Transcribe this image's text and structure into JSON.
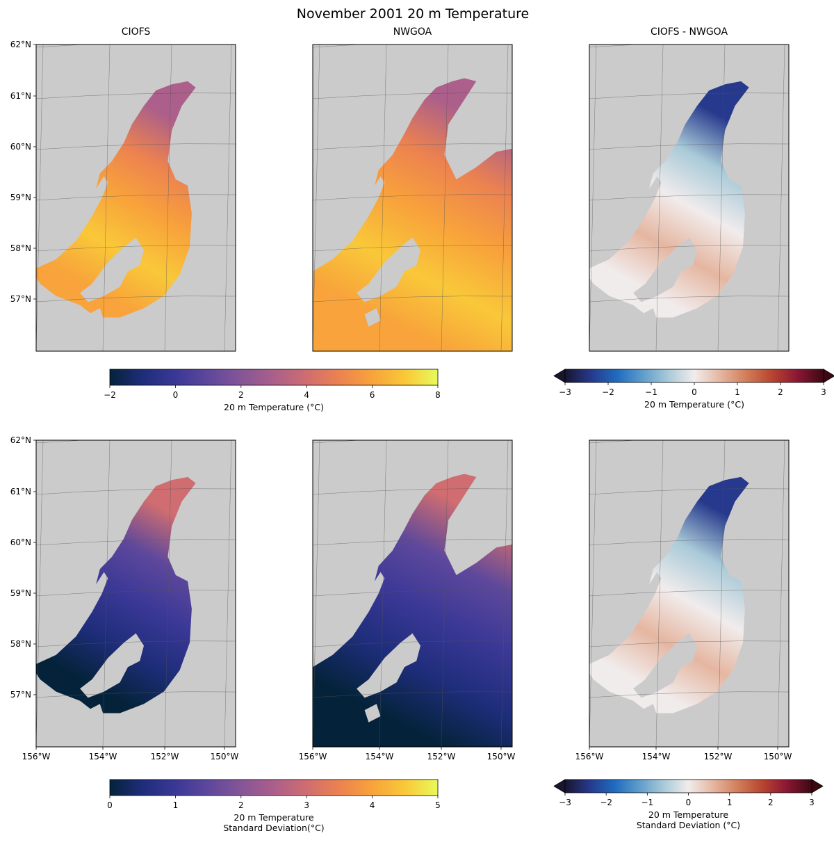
{
  "figure": {
    "title": "November 2001 20 m Temperature",
    "colors": {
      "land": "#cbcbcb",
      "ocean": "#ffffff",
      "frame": "#000000",
      "graticule": "#555555"
    }
  },
  "chart_data": [
    {
      "type": "heatmap",
      "panel": "top-left",
      "title": "CIOFS",
      "variable": "20 m Temperature",
      "lat_ticks": [
        "62°N",
        "61°N",
        "60°N",
        "59°N",
        "58°N",
        "57°N"
      ],
      "lon_ticks": [],
      "colormap": "thermal",
      "vlim": [
        -2,
        8
      ]
    },
    {
      "type": "heatmap",
      "panel": "top-middle",
      "title": "NWGOA",
      "variable": "20 m Temperature",
      "lat_ticks": [],
      "lon_ticks": [],
      "colormap": "thermal",
      "vlim": [
        -2,
        8
      ]
    },
    {
      "type": "heatmap",
      "panel": "top-right",
      "title": "CIOFS - NWGOA",
      "variable": "20 m Temperature",
      "lat_ticks": [],
      "lon_ticks": [],
      "colormap": "balance",
      "vlim": [
        -3,
        3
      ]
    },
    {
      "type": "heatmap",
      "panel": "bottom-left",
      "title": "",
      "variable": "20 m Temperature Standard Deviation",
      "lat_ticks": [
        "62°N",
        "61°N",
        "60°N",
        "59°N",
        "58°N",
        "57°N"
      ],
      "lon_ticks": [
        "156°W",
        "154°W",
        "152°W",
        "150°W"
      ],
      "colormap": "thermal",
      "vlim": [
        0,
        5
      ]
    },
    {
      "type": "heatmap",
      "panel": "bottom-middle",
      "title": "",
      "variable": "20 m Temperature Standard Deviation",
      "lat_ticks": [],
      "lon_ticks": [
        "156°W",
        "154°W",
        "152°W",
        "150°W"
      ],
      "colormap": "thermal",
      "vlim": [
        0,
        5
      ]
    },
    {
      "type": "heatmap",
      "panel": "bottom-right",
      "title": "",
      "variable": "20 m Temperature Standard Deviation",
      "lat_ticks": [],
      "lon_ticks": [
        "156°W",
        "154°W",
        "152°W",
        "150°W"
      ],
      "colormap": "balance",
      "vlim": [
        -3,
        3
      ]
    }
  ],
  "colorbars": [
    {
      "id": "cb-top-left",
      "ticks": [
        "−2",
        "0",
        "2",
        "4",
        "6",
        "8"
      ],
      "label_lines": [
        "20 m Temperature (°C)"
      ],
      "extend": "neither",
      "colormap": "thermal"
    },
    {
      "id": "cb-top-right",
      "ticks": [
        "−3",
        "−2",
        "−1",
        "0",
        "1",
        "2",
        "3"
      ],
      "label_lines": [
        "20 m Temperature (°C)"
      ],
      "extend": "both",
      "colormap": "balance"
    },
    {
      "id": "cb-bottom-left",
      "ticks": [
        "0",
        "1",
        "2",
        "3",
        "4",
        "5"
      ],
      "label_lines": [
        "20 m Temperature",
        "Standard Deviation(°C)"
      ],
      "extend": "neither",
      "colormap": "thermal"
    },
    {
      "id": "cb-bottom-right",
      "ticks": [
        "−3",
        "−2",
        "−1",
        "0",
        "1",
        "2",
        "3"
      ],
      "label_lines": [
        "20 m Temperature",
        "Standard Deviation (°C)"
      ],
      "extend": "both",
      "colormap": "balance"
    }
  ],
  "colormaps": {
    "thermal": [
      "#04233a",
      "#1e2d7a",
      "#3a3896",
      "#5e489c",
      "#855597",
      "#ab5f8a",
      "#cf6d70",
      "#ec8250",
      "#f8a33b",
      "#f9c839",
      "#e8fa5b"
    ],
    "balance": [
      "#18152f",
      "#26398c",
      "#1f6bbf",
      "#5e9ccb",
      "#a9cad8",
      "#f1ecec",
      "#e5b6a1",
      "#d27e5a",
      "#b84430",
      "#8a1634",
      "#3c0912"
    ]
  }
}
